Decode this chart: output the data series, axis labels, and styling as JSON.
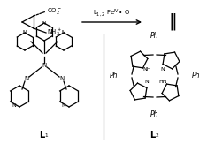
{
  "bg_color": "#ffffff",
  "figsize": [
    2.34,
    1.89
  ],
  "dpi": 100,
  "arrow_label": "L$_{1,2}$ Fe$^{IV}$= O",
  "product": "‖",
  "L1_label": "L$_1$",
  "L2_label": "L$_2$"
}
